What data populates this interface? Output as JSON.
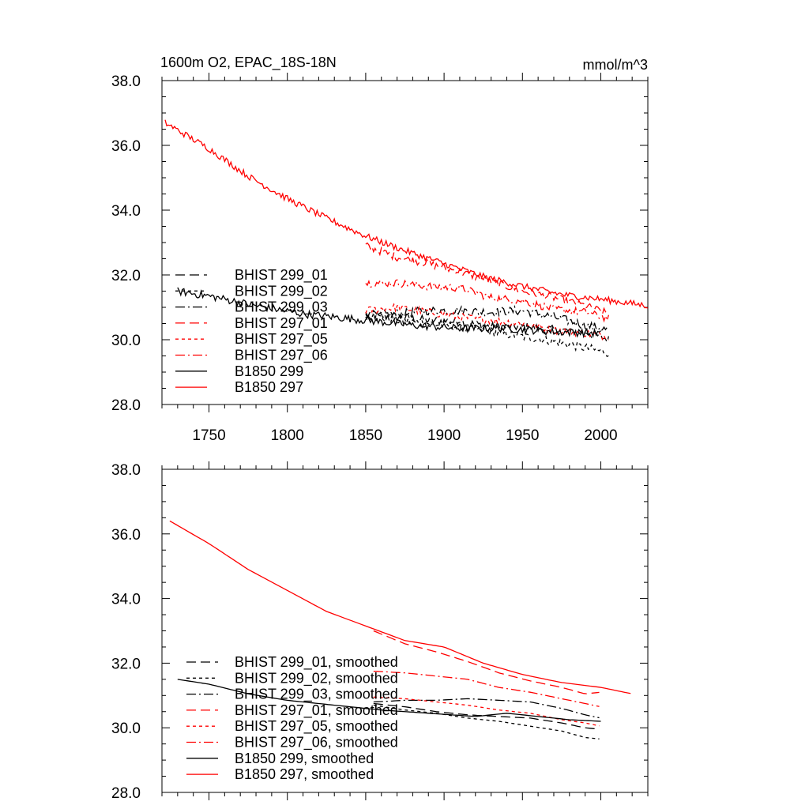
{
  "chart_data": [
    {
      "type": "line",
      "title": "1600m O2, EPAC_18S-18N",
      "units": "mmol/m^3",
      "xlim": [
        1720,
        2030
      ],
      "ylim": [
        28.0,
        38.0
      ],
      "xticks": [
        1750,
        1800,
        1850,
        1900,
        1950,
        2000
      ],
      "yticks": [
        "28.0",
        "30.0",
        "32.0",
        "34.0",
        "36.0",
        "38.0"
      ],
      "legend_position": "lower-left",
      "series": [
        {
          "name": "BHIST 299_01",
          "color": "#000000",
          "dash": "long-dash",
          "noise": 0.14,
          "x": [
            1850,
            1870,
            1890,
            1910,
            1930,
            1950,
            1970,
            1990,
            2005
          ],
          "y": [
            30.75,
            30.7,
            30.6,
            30.55,
            30.4,
            30.4,
            30.3,
            30.25,
            30.0
          ]
        },
        {
          "name": "BHIST 299_02",
          "color": "#000000",
          "dash": "short-dash",
          "noise": 0.14,
          "x": [
            1850,
            1870,
            1890,
            1910,
            1930,
            1950,
            1970,
            1990,
            2005
          ],
          "y": [
            30.75,
            30.6,
            30.5,
            30.4,
            30.25,
            30.1,
            29.95,
            29.75,
            29.6
          ]
        },
        {
          "name": "BHIST 299_03",
          "color": "#000000",
          "dash": "dash-dot",
          "noise": 0.14,
          "x": [
            1850,
            1870,
            1890,
            1910,
            1930,
            1950,
            1970,
            1990,
            2005
          ],
          "y": [
            30.75,
            30.8,
            30.9,
            30.9,
            30.85,
            30.9,
            30.7,
            30.45,
            30.3
          ]
        },
        {
          "name": "BHIST 297_01",
          "color": "#ff0000",
          "dash": "long-dash",
          "noise": 0.12,
          "x": [
            1850,
            1870,
            1890,
            1910,
            1930,
            1950,
            1970,
            1990,
            2005
          ],
          "y": [
            32.9,
            32.55,
            32.35,
            32.1,
            31.8,
            31.5,
            31.3,
            31.05,
            30.8
          ]
        },
        {
          "name": "BHIST 297_05",
          "color": "#ff0000",
          "dash": "short-dash",
          "noise": 0.12,
          "x": [
            1850,
            1870,
            1890,
            1910,
            1930,
            1950,
            1970,
            1990,
            2005
          ],
          "y": [
            30.9,
            31.0,
            30.85,
            30.7,
            30.6,
            30.5,
            30.3,
            30.2,
            30.1
          ]
        },
        {
          "name": "BHIST 297_06",
          "color": "#ff0000",
          "dash": "dash-dot",
          "noise": 0.12,
          "x": [
            1850,
            1870,
            1890,
            1910,
            1930,
            1950,
            1970,
            1990,
            2005
          ],
          "y": [
            31.75,
            31.75,
            31.65,
            31.6,
            31.3,
            31.2,
            30.95,
            30.85,
            30.65
          ]
        },
        {
          "name": "B1850 299",
          "color": "#000000",
          "dash": "solid",
          "noise": 0.12,
          "x": [
            1730,
            1750,
            1780,
            1810,
            1850,
            1880,
            1910,
            1940,
            1970,
            2000
          ],
          "y": [
            31.5,
            31.35,
            31.05,
            30.8,
            30.6,
            30.45,
            30.35,
            30.35,
            30.25,
            30.2
          ]
        },
        {
          "name": "B1850 297",
          "color": "#ff0000",
          "dash": "solid",
          "noise": 0.1,
          "x": [
            1722,
            1750,
            1775,
            1800,
            1825,
            1850,
            1875,
            1900,
            1925,
            1950,
            1975,
            2000,
            2030
          ],
          "y": [
            36.7,
            35.9,
            35.05,
            34.35,
            33.75,
            33.2,
            32.75,
            32.35,
            31.95,
            31.65,
            31.4,
            31.25,
            31.05
          ]
        }
      ]
    },
    {
      "type": "line",
      "xlim": [
        1720,
        2030
      ],
      "ylim": [
        28.0,
        38.0
      ],
      "yticks": [
        "28.0",
        "30.0",
        "32.0",
        "34.0",
        "36.0",
        "38.0"
      ],
      "legend_position": "lower-left",
      "series": [
        {
          "name": "BHIST 299_01, smoothed",
          "color": "#000000",
          "dash": "long-dash",
          "noise": 0,
          "x": [
            1855,
            1875,
            1895,
            1915,
            1935,
            1955,
            1975,
            1990,
            2000
          ],
          "y": [
            30.75,
            30.65,
            30.5,
            30.4,
            30.35,
            30.3,
            30.15,
            30.0,
            29.95
          ]
        },
        {
          "name": "BHIST 299_02, smoothed",
          "color": "#000000",
          "dash": "short-dash",
          "noise": 0,
          "x": [
            1855,
            1875,
            1895,
            1915,
            1935,
            1955,
            1975,
            1990,
            2000
          ],
          "y": [
            30.7,
            30.55,
            30.45,
            30.3,
            30.2,
            30.05,
            29.9,
            29.7,
            29.65
          ]
        },
        {
          "name": "BHIST 299_03, smoothed",
          "color": "#000000",
          "dash": "dash-dot",
          "noise": 0,
          "x": [
            1855,
            1875,
            1895,
            1915,
            1935,
            1955,
            1975,
            1990,
            2000
          ],
          "y": [
            30.8,
            30.85,
            30.85,
            30.9,
            30.85,
            30.8,
            30.6,
            30.4,
            30.3
          ]
        },
        {
          "name": "BHIST 297_01, smoothed",
          "color": "#ff0000",
          "dash": "long-dash",
          "noise": 0,
          "x": [
            1855,
            1875,
            1895,
            1915,
            1935,
            1955,
            1975,
            1990,
            2000
          ],
          "y": [
            33.0,
            32.6,
            32.35,
            32.05,
            31.7,
            31.45,
            31.25,
            31.05,
            31.1
          ]
        },
        {
          "name": "BHIST 297_05, smoothed",
          "color": "#ff0000",
          "dash": "short-dash",
          "noise": 0,
          "x": [
            1855,
            1875,
            1895,
            1915,
            1935,
            1955,
            1975,
            1990,
            2000
          ],
          "y": [
            30.95,
            30.9,
            30.8,
            30.7,
            30.55,
            30.45,
            30.25,
            30.15,
            30.05
          ]
        },
        {
          "name": "BHIST 297_06, smoothed",
          "color": "#ff0000",
          "dash": "dash-dot",
          "noise": 0,
          "x": [
            1855,
            1875,
            1895,
            1915,
            1935,
            1955,
            1975,
            1990,
            2000
          ],
          "y": [
            31.75,
            31.7,
            31.6,
            31.5,
            31.25,
            31.1,
            30.9,
            30.75,
            30.65
          ]
        },
        {
          "name": "B1850 299, smoothed",
          "color": "#000000",
          "dash": "solid",
          "noise": 0,
          "x": [
            1730,
            1750,
            1775,
            1800,
            1830,
            1860,
            1890,
            1920,
            1940,
            1960,
            1980,
            2000
          ],
          "y": [
            31.5,
            31.35,
            31.05,
            30.85,
            30.7,
            30.55,
            30.45,
            30.35,
            30.45,
            30.35,
            30.25,
            30.2
          ]
        },
        {
          "name": "B1850 297, smoothed",
          "color": "#ff0000",
          "dash": "solid",
          "noise": 0,
          "x": [
            1725,
            1750,
            1775,
            1800,
            1825,
            1850,
            1875,
            1900,
            1925,
            1950,
            1975,
            2000,
            2020
          ],
          "y": [
            36.4,
            35.7,
            34.9,
            34.25,
            33.6,
            33.15,
            32.7,
            32.5,
            32.0,
            31.65,
            31.4,
            31.25,
            31.05
          ]
        }
      ]
    }
  ]
}
